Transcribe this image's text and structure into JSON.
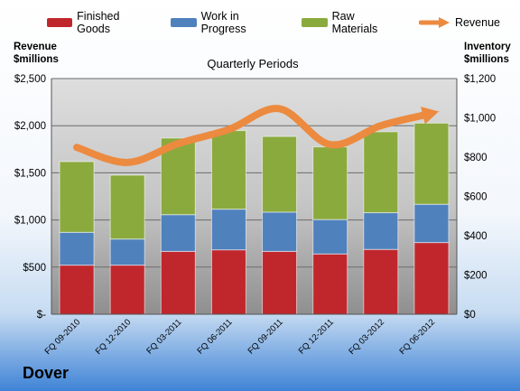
{
  "company": "Dover",
  "colors": {
    "finished_goods": "#c0272d",
    "work_in_progress": "#4f81bd",
    "raw_materials": "#8aaa3e",
    "revenue": "#ec8a3f"
  },
  "legend": {
    "finished_goods": "Finished Goods",
    "work_in_progress": "Work in Progress",
    "raw_materials": "Raw Materials",
    "revenue": "Revenue"
  },
  "chart_data": {
    "type": "bar",
    "stacked": true,
    "title": "Quarterly Periods",
    "ylabel_left": "Revenue $millions",
    "ylabel_right": "Inventory $millions",
    "ylim_left": [
      0,
      2500
    ],
    "ylim_right": [
      0,
      1200
    ],
    "yticks_left": [
      "$-",
      "$500",
      "$1,000",
      "$1,500",
      "$2,000",
      "$2,500"
    ],
    "yticks_right": [
      "$0",
      "$200",
      "$400",
      "$600",
      "$800",
      "$1,000",
      "$1,200"
    ],
    "categories": [
      "FQ 09-2010",
      "FQ 12-2010",
      "FQ 03-2011",
      "FQ 06-2011",
      "FQ 09-2011",
      "FQ 12-2011",
      "FQ 03-2012",
      "FQ 06-2012"
    ],
    "grid": true,
    "legend_position": "top",
    "series": [
      {
        "name": "Finished Goods",
        "axis": "right",
        "kind": "bar",
        "values": [
          250,
          250,
          320,
          328,
          320,
          307,
          330,
          365
        ]
      },
      {
        "name": "Work in Progress",
        "axis": "right",
        "kind": "bar",
        "values": [
          167,
          133,
          187,
          207,
          200,
          175,
          187,
          195
        ]
      },
      {
        "name": "Raw Materials",
        "axis": "right",
        "kind": "bar",
        "values": [
          360,
          325,
          390,
          400,
          385,
          370,
          412,
          413
        ]
      },
      {
        "name": "Revenue",
        "axis": "left",
        "kind": "line",
        "values": [
          1770,
          1610,
          1810,
          1960,
          2180,
          1800,
          2000,
          2150
        ]
      }
    ]
  }
}
